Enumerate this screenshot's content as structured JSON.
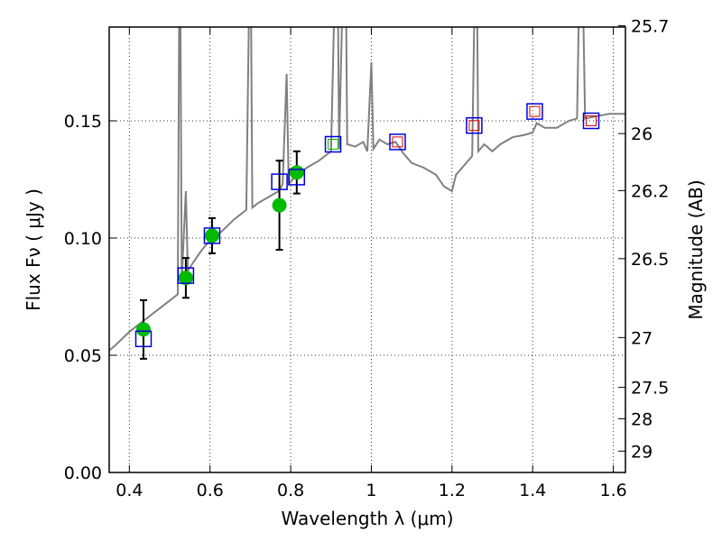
{
  "chart_data": {
    "type": "scatter",
    "xlabel": "Wavelength  λ (μm)",
    "ylabel": "Flux  Fν  ( μJy )",
    "ylabel_right": "Magnitude (AB)",
    "xlim": [
      0.35,
      1.63
    ],
    "ylim": [
      0.0,
      0.19
    ],
    "grid": true,
    "x_ticks": [
      {
        "value": 0.4,
        "label": "0.4"
      },
      {
        "value": 0.6,
        "label": "0.6"
      },
      {
        "value": 0.8,
        "label": "0.8"
      },
      {
        "value": 1.0,
        "label": "1"
      },
      {
        "value": 1.2,
        "label": "1.2"
      },
      {
        "value": 1.4,
        "label": "1.4"
      },
      {
        "value": 1.6,
        "label": "1.6"
      }
    ],
    "y_ticks": [
      {
        "value": 0.0,
        "label": "0.00"
      },
      {
        "value": 0.05,
        "label": "0.05"
      },
      {
        "value": 0.1,
        "label": "0.10"
      },
      {
        "value": 0.15,
        "label": "0.15"
      }
    ],
    "y_right_ticks": [
      {
        "mag": 25.7,
        "label": "25.7"
      },
      {
        "mag": 26,
        "label": "26"
      },
      {
        "mag": 26.2,
        "label": "26.2"
      },
      {
        "mag": 26.5,
        "label": "26.5"
      },
      {
        "mag": 27,
        "label": "27"
      },
      {
        "mag": 27.5,
        "label": "27.5"
      },
      {
        "mag": 28,
        "label": "28"
      },
      {
        "mag": 29,
        "label": "29"
      }
    ],
    "colors": {
      "spectrum": "#808080",
      "observed": "#00bb00",
      "model_box": "#0000dd",
      "inner_box_green": "#00bb00",
      "inner_box_red": "#dd0000",
      "errorbar": "#000000"
    },
    "series": [
      {
        "type": "line",
        "points": [
          [
            0.35,
            0.052
          ],
          [
            0.37,
            0.055
          ],
          [
            0.4,
            0.06
          ],
          [
            0.43,
            0.064
          ],
          [
            0.46,
            0.068
          ],
          [
            0.49,
            0.072
          ],
          [
            0.52,
            0.076
          ],
          [
            0.525,
            0.25
          ],
          [
            0.53,
            0.082
          ],
          [
            0.54,
            0.12
          ],
          [
            0.545,
            0.086
          ],
          [
            0.56,
            0.09
          ],
          [
            0.58,
            0.095
          ],
          [
            0.6,
            0.099
          ],
          [
            0.63,
            0.103
          ],
          [
            0.66,
            0.108
          ],
          [
            0.69,
            0.112
          ],
          [
            0.7,
            0.24
          ],
          [
            0.705,
            0.113
          ],
          [
            0.72,
            0.115
          ],
          [
            0.75,
            0.118
          ],
          [
            0.77,
            0.12
          ],
          [
            0.78,
            0.123
          ],
          [
            0.79,
            0.17
          ],
          [
            0.795,
            0.123
          ],
          [
            0.81,
            0.126
          ],
          [
            0.84,
            0.13
          ],
          [
            0.87,
            0.133
          ],
          [
            0.9,
            0.137
          ],
          [
            0.915,
            0.25
          ],
          [
            0.92,
            0.138
          ],
          [
            0.935,
            0.25
          ],
          [
            0.94,
            0.14
          ],
          [
            0.96,
            0.139
          ],
          [
            0.98,
            0.141
          ],
          [
            0.99,
            0.137
          ],
          [
            1.0,
            0.175
          ],
          [
            1.005,
            0.138
          ],
          [
            1.02,
            0.142
          ],
          [
            1.04,
            0.14
          ],
          [
            1.06,
            0.141
          ],
          [
            1.08,
            0.136
          ],
          [
            1.1,
            0.132
          ],
          [
            1.13,
            0.13
          ],
          [
            1.16,
            0.127
          ],
          [
            1.18,
            0.122
          ],
          [
            1.2,
            0.12
          ],
          [
            1.21,
            0.127
          ],
          [
            1.23,
            0.131
          ],
          [
            1.25,
            0.135
          ],
          [
            1.26,
            0.25
          ],
          [
            1.265,
            0.137
          ],
          [
            1.28,
            0.14
          ],
          [
            1.3,
            0.137
          ],
          [
            1.32,
            0.14
          ],
          [
            1.35,
            0.143
          ],
          [
            1.38,
            0.144
          ],
          [
            1.4,
            0.145
          ],
          [
            1.41,
            0.149
          ],
          [
            1.43,
            0.147
          ],
          [
            1.46,
            0.147
          ],
          [
            1.49,
            0.15
          ],
          [
            1.51,
            0.151
          ],
          [
            1.52,
            0.25
          ],
          [
            1.53,
            0.151
          ],
          [
            1.56,
            0.152
          ],
          [
            1.59,
            0.153
          ],
          [
            1.62,
            0.153
          ],
          [
            1.63,
            0.153
          ]
        ]
      },
      {
        "type": "observed",
        "points": [
          {
            "x": 0.435,
            "y": 0.061,
            "err": 0.0125
          },
          {
            "x": 0.54,
            "y": 0.083,
            "err": 0.0085
          },
          {
            "x": 0.605,
            "y": 0.101,
            "err": 0.0075
          },
          {
            "x": 0.772,
            "y": 0.114,
            "err": 0.019
          },
          {
            "x": 0.815,
            "y": 0.128,
            "err": 0.009
          }
        ]
      },
      {
        "type": "model_boxes",
        "points": [
          {
            "x": 0.435,
            "y": 0.057,
            "inner": "none"
          },
          {
            "x": 0.54,
            "y": 0.084,
            "inner": "none"
          },
          {
            "x": 0.605,
            "y": 0.101,
            "inner": "none"
          },
          {
            "x": 0.772,
            "y": 0.124,
            "inner": "none"
          },
          {
            "x": 0.815,
            "y": 0.126,
            "inner": "none"
          },
          {
            "x": 0.905,
            "y": 0.14,
            "inner": "green"
          },
          {
            "x": 1.065,
            "y": 0.141,
            "inner": "red"
          },
          {
            "x": 1.255,
            "y": 0.148,
            "inner": "red"
          },
          {
            "x": 1.405,
            "y": 0.154,
            "inner": "red"
          },
          {
            "x": 1.545,
            "y": 0.15,
            "inner": "red"
          }
        ]
      }
    ]
  }
}
